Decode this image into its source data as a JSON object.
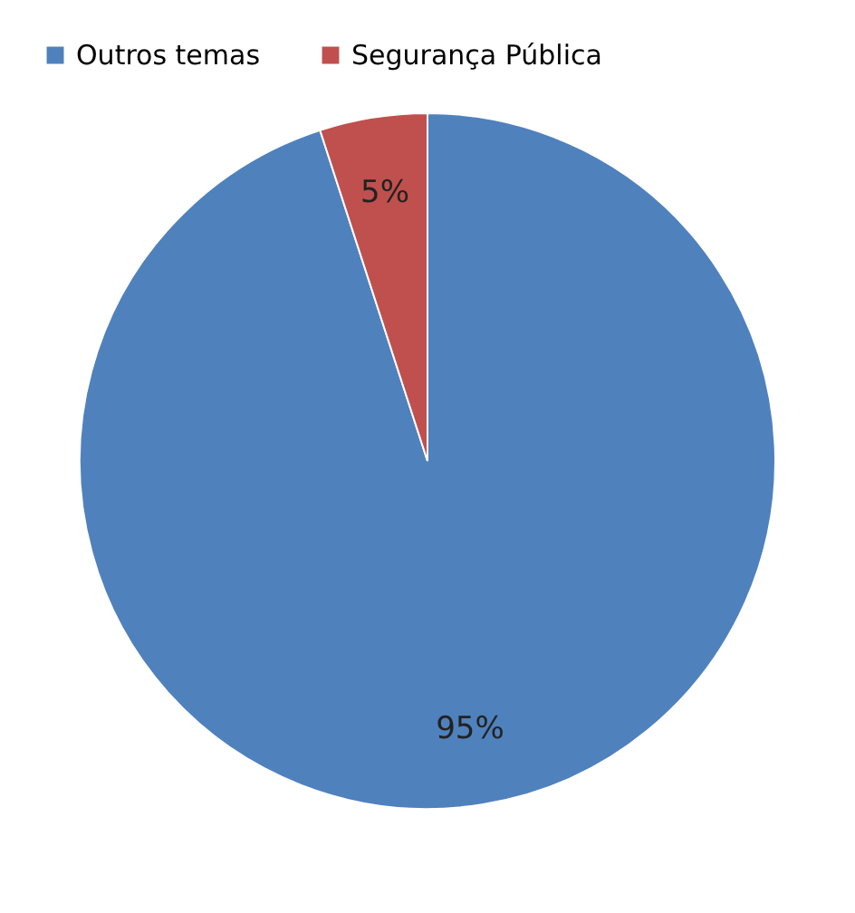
{
  "chart_data": {
    "type": "pie",
    "categories": [
      "Outros temas",
      "Segurança Pública"
    ],
    "values": [
      95,
      5
    ],
    "colors": [
      "#4f81bd",
      "#c0504d"
    ],
    "value_labels": [
      "95%",
      "5%"
    ],
    "legend": "top left"
  }
}
